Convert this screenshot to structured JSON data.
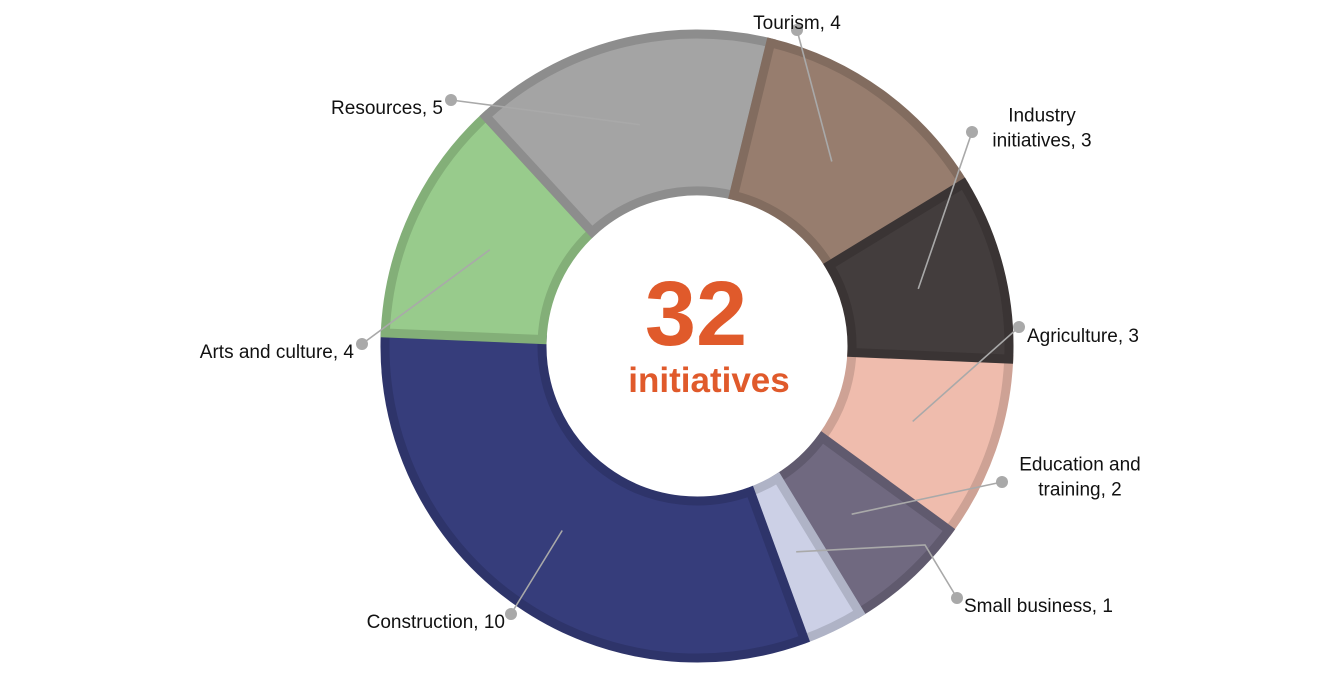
{
  "chart_data": {
    "type": "pie",
    "variant": "donut",
    "center": {
      "value": "32",
      "label": "initiatives",
      "color": "#e05a2b"
    },
    "start_category": "Agriculture",
    "direction": "clockwise",
    "categories": [
      {
        "name": "Agriculture",
        "value": 3,
        "label_lines": [
          "Agriculture, 3"
        ],
        "color": "#efbcad"
      },
      {
        "name": "Education and training",
        "value": 2,
        "label_lines": [
          "Education and",
          "training, 2"
        ],
        "color": "#706980"
      },
      {
        "name": "Small business",
        "value": 1,
        "label_lines": [
          "Small business, 1"
        ],
        "color": "#ccd0e6"
      },
      {
        "name": "Construction",
        "value": 10,
        "label_lines": [
          "Construction, 10"
        ],
        "color": "#363d7b"
      },
      {
        "name": "Arts and culture",
        "value": 4,
        "label_lines": [
          "Arts and culture, 4"
        ],
        "color": "#98cb8c"
      },
      {
        "name": "Resources",
        "value": 5,
        "label_lines": [
          "Resources, 5"
        ],
        "color": "#a4a4a4"
      },
      {
        "name": "Tourism",
        "value": 4,
        "label_lines": [
          "Tourism, 4"
        ],
        "color": "#977d6e"
      },
      {
        "name": "Industry initiatives",
        "value": 3,
        "label_lines": [
          "Industry",
          "initiatives, 3"
        ],
        "color": "#433d3d"
      }
    ],
    "leader_color": "#a9a9a9"
  }
}
